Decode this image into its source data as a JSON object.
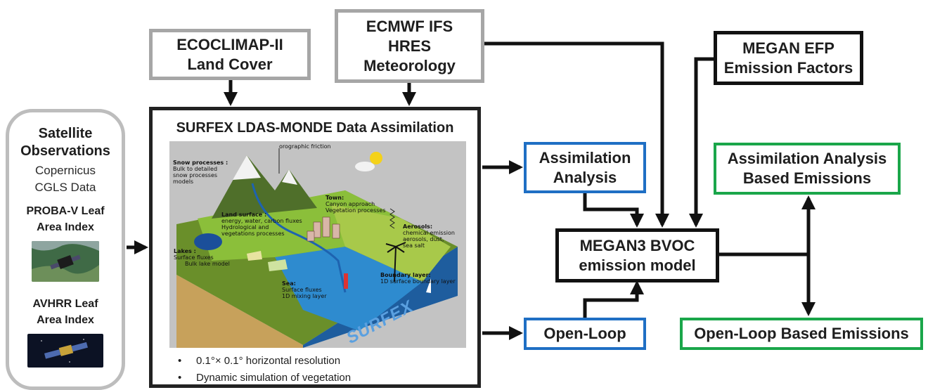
{
  "inputs": {
    "ecoclimap": [
      "ECOCLIMAP-II",
      "Land Cover"
    ],
    "ecmwf": [
      "ECMWF IFS",
      "HRES",
      "Meteorology"
    ],
    "megan_efp": [
      "MEGAN EFP",
      "Emission Factors"
    ]
  },
  "satellite": {
    "heading": [
      "Satellite",
      "Observations"
    ],
    "subheading": [
      "Copernicus",
      "CGLS Data"
    ],
    "proba": [
      "PROBA-V Leaf",
      "Area Index"
    ],
    "avhrr": [
      "AVHRR Leaf",
      "Area Index"
    ]
  },
  "surfex": {
    "title": "SURFEX LDAS-MONDE Data Assimilation",
    "bullets": [
      "0.1°× 0.1° horizontal resolution",
      "Dynamic simulation of vegetation"
    ],
    "illustration": {
      "orographic": "orographic friction",
      "snow": [
        "Snow processes :",
        "Bulk to detailed",
        "snow processes",
        "models"
      ],
      "town": [
        "Town:",
        "Canyon approach",
        "Vegetation processes"
      ],
      "land": [
        "Land surface :",
        "energy, water, carbon fluxes",
        "Hydrological and",
        "vegetations  processes"
      ],
      "aerosols": [
        "Aerosols:",
        "chemical emission",
        "aerosols, dust,",
        "sea salt"
      ],
      "lakes": [
        "Lakes :",
        "Surface fluxes",
        "Bulk lake model"
      ],
      "boundary": [
        "Boundary layer:",
        "1D surface boundary layer"
      ],
      "sea": [
        "Sea:",
        "Surface fluxes",
        "1D mixing layer"
      ],
      "logo": "SURFEX"
    }
  },
  "outputs": {
    "assim": [
      "Assimilation",
      "Analysis"
    ],
    "openloop": "Open-Loop",
    "megan3": [
      "MEGAN3 BVOC",
      "emission model"
    ],
    "assim_emissions": [
      "Assimilation Analysis",
      "Based Emissions"
    ],
    "openloop_emissions": "Open-Loop Based Emissions"
  },
  "colors": {
    "gray_border": "#a6a6a6",
    "blue_border": "#1f6fc4",
    "green_border": "#1aa64a",
    "black_border": "#111111"
  }
}
